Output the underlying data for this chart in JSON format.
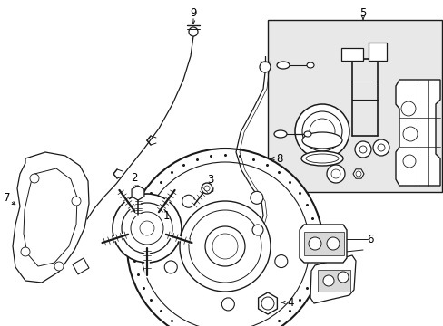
{
  "bg_color": "#ffffff",
  "line_color": "#1a1a1a",
  "box_bg": "#e8e8e8",
  "figsize": [
    4.89,
    3.6
  ],
  "dpi": 100
}
